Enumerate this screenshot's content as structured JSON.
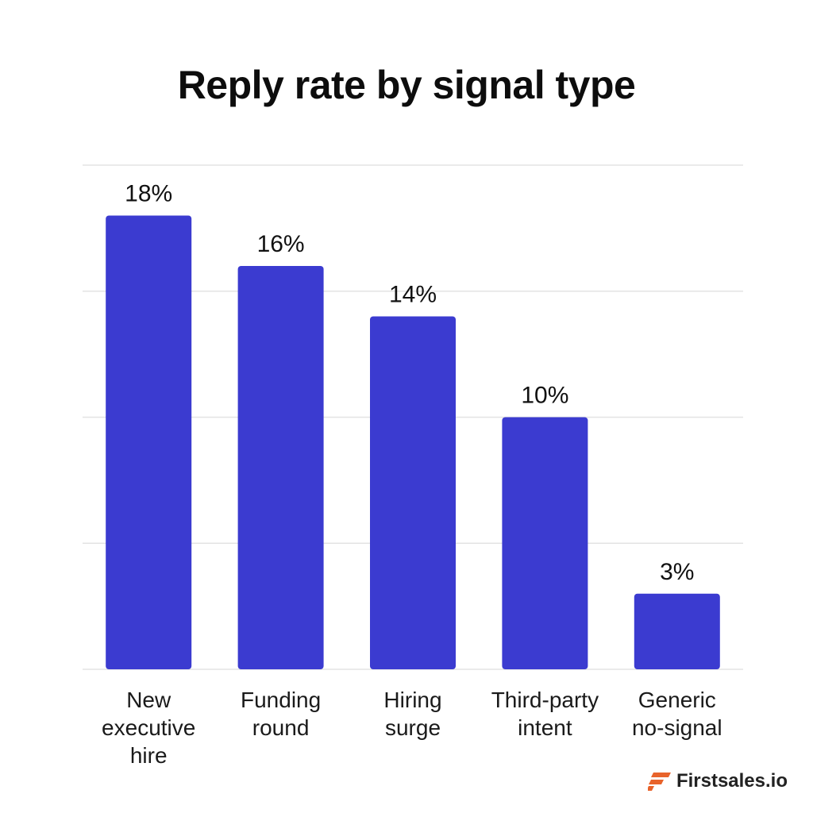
{
  "chart_data": {
    "type": "bar",
    "title": "Reply rate by signal type",
    "categories": [
      [
        "New",
        "executive",
        "hire"
      ],
      [
        "Funding",
        "round"
      ],
      [
        "Hiring",
        "surge"
      ],
      [
        "Third-party",
        "intent"
      ],
      [
        "Generic",
        "no-signal"
      ]
    ],
    "values": [
      18,
      16,
      14,
      10,
      3
    ],
    "value_labels": [
      "18%",
      "16%",
      "14%",
      "10%",
      "3%"
    ],
    "ylim": [
      0,
      20
    ],
    "grid": true,
    "bar_color": "#3b3bd0",
    "xlabel": "",
    "ylabel": ""
  },
  "brand": {
    "name": "Firstsales.io",
    "icon": "firstsales-logo-icon",
    "color": "#e8632b"
  }
}
